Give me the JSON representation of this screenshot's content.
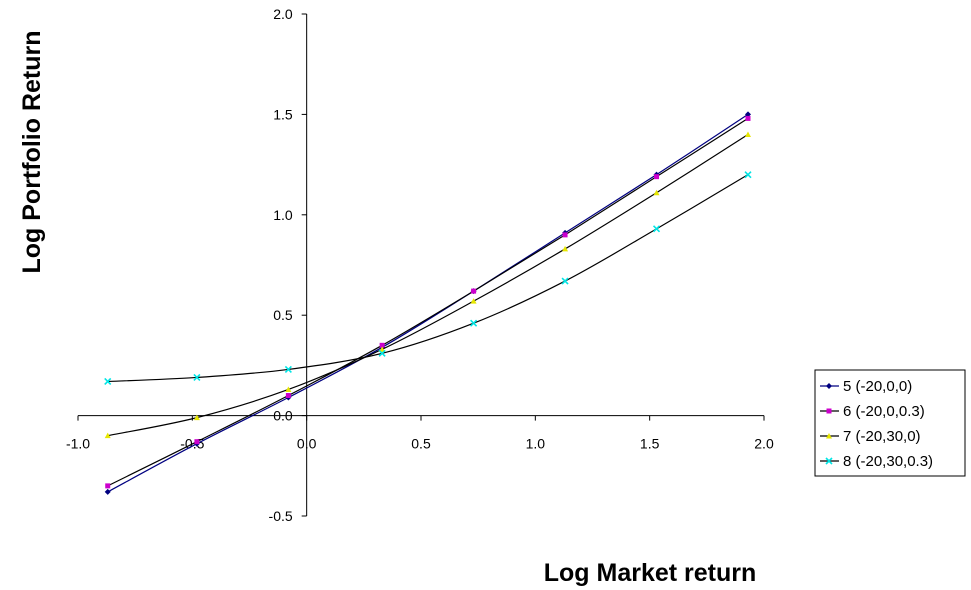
{
  "chart_data": {
    "type": "line",
    "xlabel": "Log Market return",
    "ylabel": "Log Portfolio Return",
    "xlim": [
      -1.0,
      2.0
    ],
    "ylim": [
      -0.5,
      2.0
    ],
    "x_ticks": [
      "-1.0",
      "-0.5",
      "0.0",
      "0.5",
      "1.0",
      "1.5",
      "2.0"
    ],
    "y_ticks": [
      "-0.5",
      "0.0",
      "0.5",
      "1.0",
      "1.5",
      "2.0"
    ],
    "grid": false,
    "legend_position": "right",
    "x": [
      -0.87,
      -0.48,
      -0.08,
      0.33,
      0.73,
      1.13,
      1.53,
      1.93
    ],
    "series": [
      {
        "name": "5 (-20,0,0)",
        "color": "#000080",
        "marker": "diamond",
        "values": [
          -0.38,
          -0.14,
          0.09,
          0.34,
          0.62,
          0.91,
          1.2,
          1.5
        ]
      },
      {
        "name": "6 (-20,0,0.3)",
        "color": "#cc00cc",
        "marker": "square",
        "values": [
          -0.35,
          -0.13,
          0.1,
          0.35,
          0.62,
          0.9,
          1.19,
          1.48
        ]
      },
      {
        "name": "7 (-20,30,0)",
        "color": "#e6e600",
        "marker": "triangle",
        "values": [
          -0.1,
          -0.01,
          0.13,
          0.33,
          0.57,
          0.83,
          1.11,
          1.4
        ]
      },
      {
        "name": "8 (-20,30,0.3)",
        "color": "#00e5e5",
        "marker": "x",
        "values": [
          0.17,
          0.19,
          0.23,
          0.31,
          0.46,
          0.67,
          0.93,
          1.2
        ]
      }
    ]
  }
}
